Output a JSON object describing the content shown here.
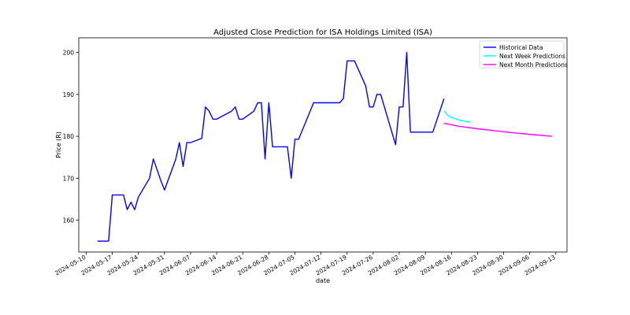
{
  "chart_data": {
    "type": "line",
    "title": "Adjusted Close Prediction for ISA Holdings Limited (ISA)",
    "xlabel": "date",
    "ylabel": "Price (R)",
    "xlim": [
      "2024-05-08",
      "2024-09-16"
    ],
    "ylim": [
      152.4,
      203.5
    ],
    "x_ticks": [
      "2024-05-10",
      "2024-05-17",
      "2024-05-24",
      "2024-05-31",
      "2024-06-07",
      "2024-06-14",
      "2024-06-21",
      "2024-06-28",
      "2024-07-05",
      "2024-07-12",
      "2024-07-19",
      "2024-07-26",
      "2024-08-02",
      "2024-08-09",
      "2024-08-16",
      "2024-08-23",
      "2024-08-30",
      "2024-09-06",
      "2024-09-13"
    ],
    "y_ticks": [
      160,
      170,
      180,
      190,
      200
    ],
    "legend_position": "top-right",
    "series": [
      {
        "name": "Historical Data",
        "color": "#0000ff",
        "points": [
          [
            "2024-05-13",
            155
          ],
          [
            "2024-05-14",
            155
          ],
          [
            "2024-05-15",
            155
          ],
          [
            "2024-05-16",
            155
          ],
          [
            "2024-05-17",
            166
          ],
          [
            "2024-05-20",
            166
          ],
          [
            "2024-05-21",
            162.5
          ],
          [
            "2024-05-22",
            164.3
          ],
          [
            "2024-05-23",
            162.5
          ],
          [
            "2024-05-24",
            165.5
          ],
          [
            "2024-05-27",
            170
          ],
          [
            "2024-05-28",
            174.6
          ],
          [
            "2024-05-30",
            169.5
          ],
          [
            "2024-05-31",
            167.2
          ],
          [
            "2024-06-03",
            174.5
          ],
          [
            "2024-06-04",
            178.5
          ],
          [
            "2024-06-05",
            172.8
          ],
          [
            "2024-06-06",
            178.5
          ],
          [
            "2024-06-07",
            178.5
          ],
          [
            "2024-06-10",
            179.5
          ],
          [
            "2024-06-11",
            187
          ],
          [
            "2024-06-12",
            186
          ],
          [
            "2024-06-13",
            184.1
          ],
          [
            "2024-06-14",
            184.1
          ],
          [
            "2024-06-18",
            186
          ],
          [
            "2024-06-19",
            187
          ],
          [
            "2024-06-20",
            184.1
          ],
          [
            "2024-06-21",
            184.1
          ],
          [
            "2024-06-24",
            186
          ],
          [
            "2024-06-25",
            188
          ],
          [
            "2024-06-26",
            188
          ],
          [
            "2024-06-27",
            174.6
          ],
          [
            "2024-06-28",
            188
          ],
          [
            "2024-06-29",
            177.5
          ],
          [
            "2024-07-02",
            177.5
          ],
          [
            "2024-07-03",
            177.5
          ],
          [
            "2024-07-04",
            170
          ],
          [
            "2024-07-05",
            179.3
          ],
          [
            "2024-07-06",
            179.3
          ],
          [
            "2024-07-10",
            188
          ],
          [
            "2024-07-17",
            188
          ],
          [
            "2024-07-18",
            189
          ],
          [
            "2024-07-19",
            198
          ],
          [
            "2024-07-21",
            198
          ],
          [
            "2024-07-24",
            192
          ],
          [
            "2024-07-25",
            187
          ],
          [
            "2024-07-26",
            187
          ],
          [
            "2024-07-27",
            190
          ],
          [
            "2024-07-28",
            190
          ],
          [
            "2024-08-01",
            178
          ],
          [
            "2024-08-02",
            187
          ],
          [
            "2024-08-03",
            187
          ],
          [
            "2024-08-04",
            200
          ],
          [
            "2024-08-05",
            181
          ],
          [
            "2024-08-11",
            181
          ],
          [
            "2024-08-14",
            189
          ]
        ]
      },
      {
        "name": "Next Week Predictions",
        "color": "#00ffff",
        "points": [
          [
            "2024-08-14",
            186.1
          ],
          [
            "2024-08-15",
            185
          ],
          [
            "2024-08-16",
            184.5
          ],
          [
            "2024-08-17",
            184.2
          ],
          [
            "2024-08-18",
            183.9
          ],
          [
            "2024-08-19",
            183.7
          ],
          [
            "2024-08-20",
            183.5
          ],
          [
            "2024-08-21",
            183.4
          ]
        ]
      },
      {
        "name": "Next Month Predictions",
        "color": "#ff00ff",
        "points": [
          [
            "2024-08-14",
            183.1
          ],
          [
            "2024-08-18",
            182.4
          ],
          [
            "2024-08-23",
            181.8
          ],
          [
            "2024-08-28",
            181.3
          ],
          [
            "2024-09-02",
            180.8
          ],
          [
            "2024-09-07",
            180.4
          ],
          [
            "2024-09-12",
            180
          ]
        ]
      }
    ]
  }
}
